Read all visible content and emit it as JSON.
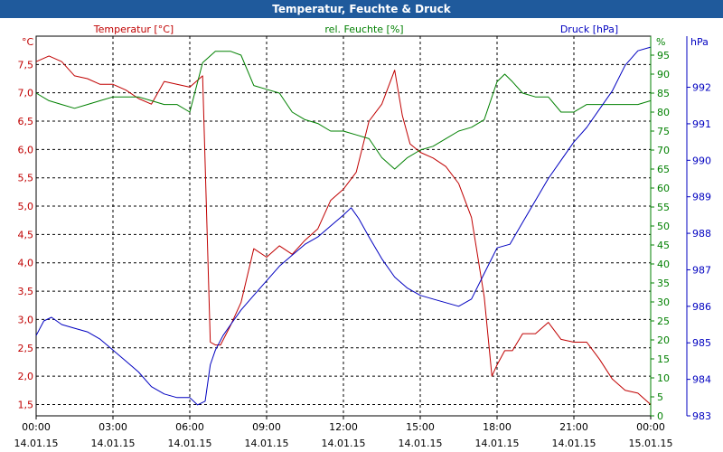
{
  "title": "Temperatur, Feuchte & Druck",
  "chart_data": {
    "type": "line",
    "title": "Temperatur, Feuchte & Druck",
    "x_tick_labels": [
      {
        "time": "00:00",
        "date": "14.01.15"
      },
      {
        "time": "03:00",
        "date": "14.01.15"
      },
      {
        "time": "06:00",
        "date": "14.01.15"
      },
      {
        "time": "09:00",
        "date": "14.01.15"
      },
      {
        "time": "12:00",
        "date": "14.01.15"
      },
      {
        "time": "15:00",
        "date": "14.01.15"
      },
      {
        "time": "18:00",
        "date": "14.01.15"
      },
      {
        "time": "21:00",
        "date": "14.01.15"
      },
      {
        "time": "00:00",
        "date": "15.01.15"
      }
    ],
    "xlim": [
      0,
      24
    ],
    "axes": {
      "temperature": {
        "unit": "°C",
        "ylim": [
          1.3,
          8.0
        ],
        "ticks": [
          "1,5",
          "2,0",
          "2,5",
          "3,0",
          "3,5",
          "4,0",
          "4,5",
          "5,0",
          "5,5",
          "6,0",
          "6,5",
          "7,0",
          "7,5"
        ],
        "tick_values": [
          1.5,
          2.0,
          2.5,
          3.0,
          3.5,
          4.0,
          4.5,
          5.0,
          5.5,
          6.0,
          6.5,
          7.0,
          7.5
        ],
        "color": "#c00000"
      },
      "humidity": {
        "unit": "%",
        "ylim": [
          0,
          100
        ],
        "ticks": [
          "0",
          "5",
          "10",
          "15",
          "20",
          "25",
          "30",
          "35",
          "40",
          "45",
          "50",
          "55",
          "60",
          "65",
          "70",
          "75",
          "80",
          "85",
          "90",
          "95"
        ],
        "tick_values": [
          0,
          5,
          10,
          15,
          20,
          25,
          30,
          35,
          40,
          45,
          50,
          55,
          60,
          65,
          70,
          75,
          80,
          85,
          90,
          95
        ],
        "color": "#008000"
      },
      "pressure": {
        "unit": "hPa",
        "ylim": [
          983,
          993.4
        ],
        "ticks": [
          "983",
          "984",
          "985",
          "986",
          "987",
          "988",
          "989",
          "990",
          "991",
          "992"
        ],
        "tick_values": [
          983,
          984,
          985,
          986,
          987,
          988,
          989,
          990,
          991,
          992
        ],
        "color": "#0000c0"
      }
    },
    "series": [
      {
        "name": "Temperatur [°C]",
        "axis": "temperature",
        "color": "#c00000",
        "x": [
          0,
          0.5,
          1,
          1.5,
          2,
          2.5,
          3,
          3.5,
          4,
          4.5,
          5,
          5.5,
          6,
          6.5,
          6.8,
          7,
          7.2,
          7.6,
          8,
          8.5,
          9,
          9.5,
          10,
          10.5,
          11,
          11.5,
          12,
          12.5,
          13,
          13.5,
          14,
          14.3,
          14.6,
          15,
          15.5,
          16,
          16.5,
          17,
          17.5,
          17.8,
          18,
          18.3,
          18.6,
          19,
          19.5,
          20,
          20.5,
          21,
          21.5,
          22,
          22.5,
          23,
          23.5,
          24
        ],
        "values": [
          7.55,
          7.65,
          7.55,
          7.3,
          7.25,
          7.15,
          7.15,
          7.05,
          6.9,
          6.8,
          7.2,
          7.15,
          7.1,
          7.3,
          2.6,
          2.55,
          2.55,
          2.9,
          3.3,
          4.25,
          4.1,
          4.3,
          4.15,
          4.4,
          4.6,
          5.1,
          5.3,
          5.6,
          6.5,
          6.8,
          7.4,
          6.6,
          6.1,
          5.95,
          5.85,
          5.7,
          5.4,
          4.8,
          3.4,
          2.0,
          2.2,
          2.45,
          2.45,
          2.75,
          2.75,
          2.95,
          2.65,
          2.6,
          2.6,
          2.3,
          1.95,
          1.75,
          1.7,
          1.5
        ]
      },
      {
        "name": "rel. Feuchte [%]",
        "axis": "humidity",
        "color": "#008000",
        "x": [
          0,
          0.5,
          1,
          1.5,
          2,
          2.5,
          3,
          3.5,
          4,
          4.5,
          5,
          5.5,
          6,
          6.5,
          7,
          7.3,
          7.6,
          8,
          8.5,
          9,
          9.5,
          10,
          10.5,
          11,
          11.5,
          12,
          12.5,
          13,
          13.5,
          14,
          14.5,
          15,
          15.5,
          16,
          16.5,
          17,
          17.5,
          18,
          18.3,
          18.6,
          19,
          19.5,
          20,
          20.5,
          21,
          21.5,
          22,
          22.5,
          23,
          23.5,
          24
        ],
        "values": [
          85,
          83,
          82,
          81,
          82,
          83,
          84,
          84,
          84,
          83,
          82,
          82,
          80,
          93,
          96,
          96,
          96,
          95,
          87,
          86,
          85,
          80,
          78,
          77,
          75,
          75,
          74,
          73,
          68,
          65,
          68,
          70,
          71,
          73,
          75,
          76,
          78,
          88,
          90,
          88,
          85,
          84,
          84,
          80,
          80,
          82,
          82,
          82,
          82,
          82,
          83
        ]
      },
      {
        "name": "Druck [hPa]",
        "axis": "pressure",
        "color": "#0000c0",
        "x": [
          0,
          0.3,
          0.6,
          1,
          1.5,
          2,
          2.5,
          3,
          3.5,
          4,
          4.5,
          5,
          5.5,
          6,
          6.3,
          6.6,
          6.8,
          7,
          7.3,
          7.6,
          8,
          8.5,
          9,
          9.5,
          10,
          10.5,
          11,
          11.5,
          12,
          12.3,
          12.6,
          13,
          13.5,
          14,
          14.5,
          15,
          15.5,
          16,
          16.5,
          17,
          17.5,
          18,
          18.5,
          19,
          19.5,
          20,
          20.5,
          21,
          21.5,
          22,
          22.5,
          23,
          23.5,
          24
        ],
        "values": [
          985.2,
          985.6,
          985.7,
          985.5,
          985.4,
          985.3,
          985.1,
          984.8,
          984.5,
          984.2,
          983.8,
          983.6,
          983.5,
          983.5,
          983.3,
          983.4,
          984.4,
          984.8,
          985.2,
          985.5,
          985.9,
          986.3,
          986.7,
          987.1,
          987.4,
          987.7,
          987.9,
          988.2,
          988.5,
          988.7,
          988.4,
          987.9,
          987.3,
          986.8,
          986.5,
          986.3,
          986.2,
          986.1,
          986.0,
          986.2,
          986.9,
          987.6,
          987.7,
          988.3,
          988.9,
          989.5,
          990.0,
          990.5,
          990.9,
          991.4,
          991.9,
          992.6,
          993.0,
          993.1
        ]
      }
    ]
  }
}
